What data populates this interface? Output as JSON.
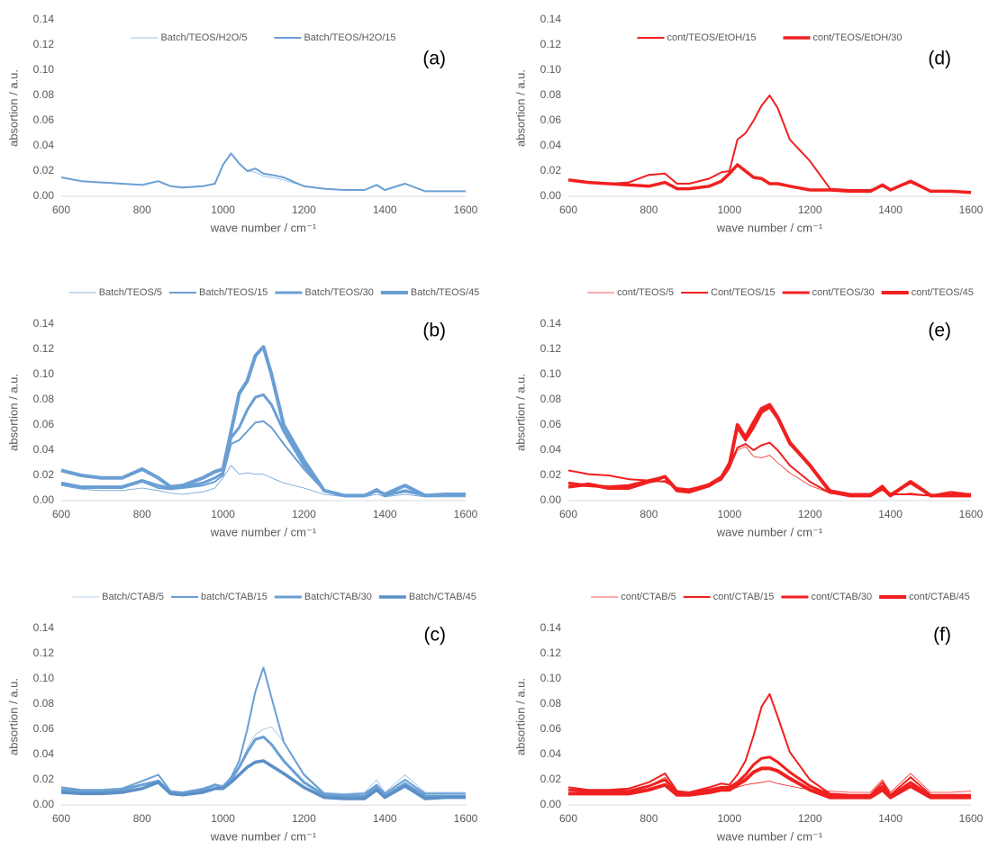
{
  "chart_data": [
    {
      "type": "line",
      "annotation": "(a)",
      "xlabel": "wave number /  cm⁻¹",
      "ylabel": "absortion / a.u.",
      "x": [
        600,
        650,
        700,
        750,
        800,
        840,
        870,
        900,
        950,
        980,
        1000,
        1020,
        1040,
        1060,
        1080,
        1100,
        1120,
        1150,
        1200,
        1250,
        1300,
        1350,
        1380,
        1400,
        1450,
        1500,
        1550,
        1600
      ],
      "xlim": [
        600,
        1600
      ],
      "xticks": [
        600,
        800,
        1000,
        1200,
        1400,
        1600
      ],
      "ylim": [
        0,
        0.14
      ],
      "yticks": [
        {
          "value": 0,
          "label": "0.00"
        },
        0.02,
        0.04,
        0.06,
        0.08,
        {
          "value": 0.1,
          "label": "0.10"
        },
        0.12,
        0.14
      ],
      "series": [
        {
          "name": "Batch/TEOS/H2O/5",
          "color": "#9dc3e6",
          "line_width": 1,
          "values": [
            0.015,
            0.012,
            0.011,
            0.01,
            0.009,
            0.012,
            0.008,
            0.007,
            0.008,
            0.01,
            0.025,
            0.034,
            0.026,
            0.02,
            0.019,
            0.016,
            0.015,
            0.013,
            0.008,
            0.006,
            0.005,
            0.005,
            0.009,
            0.005,
            0.01,
            0.004,
            0.004,
            0.004
          ]
        },
        {
          "name": "Batch/TEOS/H2O/15",
          "color": "#6a9fd4",
          "line_width": 2,
          "values": [
            0.015,
            0.012,
            0.011,
            0.01,
            0.009,
            0.012,
            0.008,
            0.007,
            0.008,
            0.01,
            0.025,
            0.034,
            0.026,
            0.02,
            0.022,
            0.018,
            0.017,
            0.015,
            0.008,
            0.006,
            0.005,
            0.005,
            0.009,
            0.005,
            0.01,
            0.004,
            0.004,
            0.004
          ]
        }
      ]
    },
    {
      "type": "line",
      "annotation": "(b)",
      "xlabel": "wave number /  cm⁻¹",
      "ylabel": "absortion / a.u.",
      "x": [
        600,
        650,
        700,
        750,
        800,
        840,
        870,
        900,
        950,
        980,
        1000,
        1020,
        1040,
        1060,
        1080,
        1100,
        1120,
        1150,
        1200,
        1250,
        1300,
        1350,
        1380,
        1400,
        1450,
        1500,
        1550,
        1600
      ],
      "xlim": [
        600,
        1600
      ],
      "xticks": [
        600,
        800,
        1000,
        1200,
        1400,
        1600
      ],
      "ylim": [
        0,
        0.14
      ],
      "yticks": [
        {
          "value": 0,
          "label": "0.00"
        },
        0.02,
        0.04,
        0.06,
        0.08,
        {
          "value": 0.1,
          "label": "0.10"
        },
        0.12,
        0.14
      ],
      "series": [
        {
          "name": "Batch/TEOS/5",
          "color": "#6a9fd4",
          "line_width": 0.8,
          "values": [
            0.012,
            0.009,
            0.008,
            0.008,
            0.01,
            0.008,
            0.006,
            0.005,
            0.007,
            0.01,
            0.018,
            0.028,
            0.021,
            0.022,
            0.021,
            0.021,
            0.018,
            0.014,
            0.01,
            0.005,
            0.003,
            0.003,
            0.005,
            0.003,
            0.005,
            0.003,
            0.003,
            0.003
          ]
        },
        {
          "name": "Batch/TEOS/15",
          "color": "#6a9fd4",
          "line_width": 2,
          "values": [
            0.013,
            0.01,
            0.01,
            0.01,
            0.015,
            0.01,
            0.009,
            0.01,
            0.012,
            0.015,
            0.02,
            0.045,
            0.048,
            0.055,
            0.062,
            0.063,
            0.058,
            0.045,
            0.025,
            0.008,
            0.004,
            0.004,
            0.008,
            0.004,
            0.007,
            0.004,
            0.004,
            0.004
          ]
        },
        {
          "name": "Batch/TEOS/30",
          "color": "#6a9fd4",
          "line_width": 3,
          "values": [
            0.014,
            0.011,
            0.011,
            0.011,
            0.016,
            0.012,
            0.01,
            0.011,
            0.014,
            0.018,
            0.022,
            0.05,
            0.058,
            0.072,
            0.082,
            0.084,
            0.076,
            0.055,
            0.028,
            0.008,
            0.004,
            0.004,
            0.009,
            0.004,
            0.008,
            0.004,
            0.005,
            0.005
          ]
        },
        {
          "name": "Batch/TEOS/45",
          "color": "#6a9fd4",
          "line_width": 4,
          "values": [
            0.024,
            0.02,
            0.018,
            0.018,
            0.025,
            0.018,
            0.011,
            0.012,
            0.018,
            0.023,
            0.025,
            0.055,
            0.085,
            0.095,
            0.115,
            0.122,
            0.1,
            0.06,
            0.032,
            0.008,
            0.004,
            0.004,
            0.008,
            0.005,
            0.012,
            0.004,
            0.005,
            0.005
          ]
        }
      ]
    },
    {
      "type": "line",
      "annotation": "(c)",
      "xlabel": "wave number /  cm⁻¹",
      "ylabel": "absortion / a.u.",
      "x": [
        600,
        650,
        700,
        750,
        800,
        840,
        870,
        900,
        950,
        980,
        1000,
        1020,
        1040,
        1060,
        1080,
        1100,
        1120,
        1150,
        1200,
        1250,
        1300,
        1350,
        1380,
        1400,
        1450,
        1500,
        1550,
        1600
      ],
      "xlim": [
        600,
        1600
      ],
      "xticks": [
        600,
        800,
        1000,
        1200,
        1400,
        1600
      ],
      "ylim": [
        0,
        0.14
      ],
      "yticks": [
        {
          "value": 0,
          "label": "0.00"
        },
        0.02,
        0.04,
        0.06,
        0.08,
        {
          "value": 0.1,
          "label": "0.10"
        },
        0.12,
        0.14
      ],
      "series": [
        {
          "name": "Batch/CTAB/5",
          "color": "#9dc3e6",
          "line_width": 0.8,
          "values": [
            0.013,
            0.012,
            0.012,
            0.012,
            0.016,
            0.02,
            0.01,
            0.009,
            0.012,
            0.015,
            0.014,
            0.02,
            0.03,
            0.045,
            0.056,
            0.06,
            0.062,
            0.05,
            0.025,
            0.01,
            0.009,
            0.01,
            0.02,
            0.01,
            0.024,
            0.01,
            0.01,
            0.01
          ]
        },
        {
          "name": "batch/CTAB/15",
          "color": "#6a9fd4",
          "line_width": 2,
          "values": [
            0.014,
            0.012,
            0.012,
            0.013,
            0.019,
            0.024,
            0.011,
            0.01,
            0.013,
            0.016,
            0.015,
            0.022,
            0.035,
            0.06,
            0.09,
            0.109,
            0.085,
            0.05,
            0.024,
            0.009,
            0.008,
            0.009,
            0.016,
            0.009,
            0.02,
            0.009,
            0.009,
            0.009
          ]
        },
        {
          "name": "Batch/CTAB/30",
          "color": "#6a9fd4",
          "line_width": 3,
          "values": [
            0.012,
            0.011,
            0.011,
            0.012,
            0.016,
            0.019,
            0.01,
            0.009,
            0.012,
            0.016,
            0.014,
            0.02,
            0.03,
            0.042,
            0.052,
            0.054,
            0.048,
            0.035,
            0.018,
            0.008,
            0.007,
            0.007,
            0.014,
            0.007,
            0.017,
            0.007,
            0.007,
            0.007
          ]
        },
        {
          "name": "Batch/CTAB/45",
          "color": "#5b8fc7",
          "line_width": 3.5,
          "values": [
            0.01,
            0.009,
            0.009,
            0.01,
            0.013,
            0.018,
            0.009,
            0.008,
            0.01,
            0.013,
            0.013,
            0.018,
            0.024,
            0.03,
            0.034,
            0.035,
            0.031,
            0.025,
            0.014,
            0.006,
            0.005,
            0.005,
            0.012,
            0.006,
            0.015,
            0.005,
            0.006,
            0.006
          ]
        }
      ]
    },
    {
      "type": "line",
      "annotation": "(d)",
      "xlabel": "wave number /  cm⁻¹",
      "ylabel": "absortion / a.u.",
      "x": [
        600,
        650,
        700,
        750,
        800,
        840,
        870,
        900,
        950,
        980,
        1000,
        1020,
        1040,
        1060,
        1080,
        1100,
        1120,
        1150,
        1200,
        1250,
        1300,
        1350,
        1380,
        1400,
        1450,
        1500,
        1550,
        1600
      ],
      "xlim": [
        600,
        1600
      ],
      "xticks": [
        600,
        800,
        1000,
        1200,
        1400,
        1600
      ],
      "ylim": [
        0,
        0.14
      ],
      "yticks": [
        {
          "value": 0,
          "label": "0.00"
        },
        0.02,
        0.04,
        0.06,
        0.08,
        {
          "value": 0.1,
          "label": "0.10"
        },
        0.12,
        0.14
      ],
      "series": [
        {
          "name": "cont/TEOS/EtOH/15",
          "color": "#f02020",
          "line_width": 2,
          "values": [
            0.013,
            0.011,
            0.01,
            0.011,
            0.017,
            0.018,
            0.01,
            0.01,
            0.014,
            0.019,
            0.02,
            0.045,
            0.05,
            0.06,
            0.072,
            0.08,
            0.07,
            0.045,
            0.028,
            0.006,
            0.005,
            0.005,
            0.008,
            0.005,
            0.011,
            0.004,
            0.004,
            0.003
          ]
        },
        {
          "name": "cont/TEOS/EtOH/30",
          "color": "#f02020",
          "line_width": 3.5,
          "values": [
            0.013,
            0.011,
            0.01,
            0.009,
            0.008,
            0.011,
            0.006,
            0.006,
            0.008,
            0.012,
            0.018,
            0.025,
            0.02,
            0.015,
            0.014,
            0.01,
            0.01,
            0.008,
            0.005,
            0.005,
            0.004,
            0.004,
            0.009,
            0.005,
            0.012,
            0.004,
            0.004,
            0.003
          ]
        }
      ]
    },
    {
      "type": "line",
      "annotation": "(e)",
      "xlabel": "wave number /  cm⁻¹",
      "ylabel": "absortion / a.u.",
      "x": [
        600,
        650,
        700,
        750,
        800,
        840,
        870,
        900,
        950,
        980,
        1000,
        1020,
        1040,
        1060,
        1080,
        1100,
        1120,
        1150,
        1200,
        1250,
        1300,
        1350,
        1380,
        1400,
        1450,
        1500,
        1550,
        1600
      ],
      "xlim": [
        600,
        1600
      ],
      "xticks": [
        600,
        800,
        1000,
        1200,
        1400,
        1600
      ],
      "ylim": [
        0,
        0.14
      ],
      "yticks": [
        {
          "value": 0,
          "label": "0.00"
        },
        0.02,
        0.04,
        0.06,
        0.08,
        {
          "value": 0.1,
          "label": "0.10"
        },
        0.12,
        0.14
      ],
      "series": [
        {
          "name": "cont/TEOS/5",
          "color": "#f02020",
          "line_width": 0.8,
          "values": [
            0.012,
            0.011,
            0.01,
            0.011,
            0.014,
            0.016,
            0.008,
            0.008,
            0.012,
            0.016,
            0.025,
            0.04,
            0.043,
            0.035,
            0.034,
            0.036,
            0.03,
            0.022,
            0.012,
            0.006,
            0.004,
            0.004,
            0.008,
            0.004,
            0.006,
            0.004,
            0.005,
            0.004
          ]
        },
        {
          "name": "Cont/TEOS/15",
          "color": "#f02020",
          "line_width": 2,
          "values": [
            0.024,
            0.021,
            0.02,
            0.017,
            0.016,
            0.015,
            0.01,
            0.009,
            0.013,
            0.018,
            0.028,
            0.042,
            0.045,
            0.04,
            0.044,
            0.046,
            0.04,
            0.028,
            0.015,
            0.006,
            0.005,
            0.005,
            0.012,
            0.005,
            0.005,
            0.004,
            0.007,
            0.005
          ]
        },
        {
          "name": "cont/TEOS/30",
          "color": "#f02020",
          "line_width": 3,
          "values": [
            0.014,
            0.012,
            0.011,
            0.012,
            0.016,
            0.019,
            0.009,
            0.008,
            0.013,
            0.019,
            0.03,
            0.058,
            0.048,
            0.058,
            0.07,
            0.074,
            0.065,
            0.045,
            0.028,
            0.008,
            0.005,
            0.005,
            0.01,
            0.005,
            0.014,
            0.004,
            0.005,
            0.005
          ]
        },
        {
          "name": "cont/TEOS/45",
          "color": "#f02020",
          "line_width": 4,
          "values": [
            0.011,
            0.013,
            0.01,
            0.01,
            0.015,
            0.019,
            0.008,
            0.007,
            0.012,
            0.018,
            0.028,
            0.06,
            0.05,
            0.062,
            0.073,
            0.076,
            0.066,
            0.046,
            0.028,
            0.007,
            0.004,
            0.004,
            0.01,
            0.004,
            0.015,
            0.004,
            0.004,
            0.004
          ]
        }
      ]
    },
    {
      "type": "line",
      "annotation": "(f)",
      "xlabel": "wave number /  cm⁻¹",
      "ylabel": "absortion / a.u.",
      "x": [
        600,
        650,
        700,
        750,
        800,
        840,
        870,
        900,
        950,
        980,
        1000,
        1020,
        1040,
        1060,
        1080,
        1100,
        1120,
        1150,
        1200,
        1250,
        1300,
        1350,
        1380,
        1400,
        1450,
        1500,
        1550,
        1600
      ],
      "xlim": [
        600,
        1600
      ],
      "xticks": [
        600,
        800,
        1000,
        1200,
        1400,
        1600
      ],
      "ylim": [
        0,
        0.14
      ],
      "yticks": [
        {
          "value": 0,
          "label": "0.00"
        },
        0.02,
        0.04,
        0.06,
        0.08,
        {
          "value": 0.1,
          "label": "0.10"
        },
        0.12,
        0.14
      ],
      "series": [
        {
          "name": "cont/CTAB/5",
          "color": "#f02020",
          "line_width": 0.8,
          "values": [
            0.01,
            0.01,
            0.01,
            0.01,
            0.015,
            0.022,
            0.01,
            0.01,
            0.012,
            0.014,
            0.012,
            0.014,
            0.016,
            0.017,
            0.018,
            0.019,
            0.017,
            0.015,
            0.012,
            0.011,
            0.01,
            0.01,
            0.02,
            0.01,
            0.025,
            0.01,
            0.01,
            0.011
          ]
        },
        {
          "name": "cont/CTAB/15",
          "color": "#f02020",
          "line_width": 2,
          "values": [
            0.014,
            0.012,
            0.012,
            0.013,
            0.018,
            0.025,
            0.011,
            0.01,
            0.014,
            0.017,
            0.016,
            0.024,
            0.035,
            0.055,
            0.078,
            0.088,
            0.07,
            0.042,
            0.02,
            0.009,
            0.008,
            0.008,
            0.018,
            0.008,
            0.022,
            0.008,
            0.008,
            0.008
          ]
        },
        {
          "name": "cont/CTAB/30",
          "color": "#f02020",
          "line_width": 3,
          "values": [
            0.012,
            0.011,
            0.011,
            0.011,
            0.015,
            0.02,
            0.01,
            0.009,
            0.012,
            0.014,
            0.014,
            0.018,
            0.024,
            0.032,
            0.037,
            0.038,
            0.034,
            0.026,
            0.015,
            0.008,
            0.007,
            0.007,
            0.015,
            0.007,
            0.018,
            0.007,
            0.007,
            0.007
          ]
        },
        {
          "name": "cont/CTAB/45",
          "color": "#f02020",
          "line_width": 4,
          "values": [
            0.009,
            0.009,
            0.009,
            0.009,
            0.012,
            0.016,
            0.008,
            0.008,
            0.01,
            0.012,
            0.012,
            0.016,
            0.02,
            0.026,
            0.029,
            0.029,
            0.027,
            0.021,
            0.012,
            0.006,
            0.006,
            0.006,
            0.012,
            0.006,
            0.015,
            0.006,
            0.006,
            0.006
          ]
        }
      ]
    }
  ]
}
